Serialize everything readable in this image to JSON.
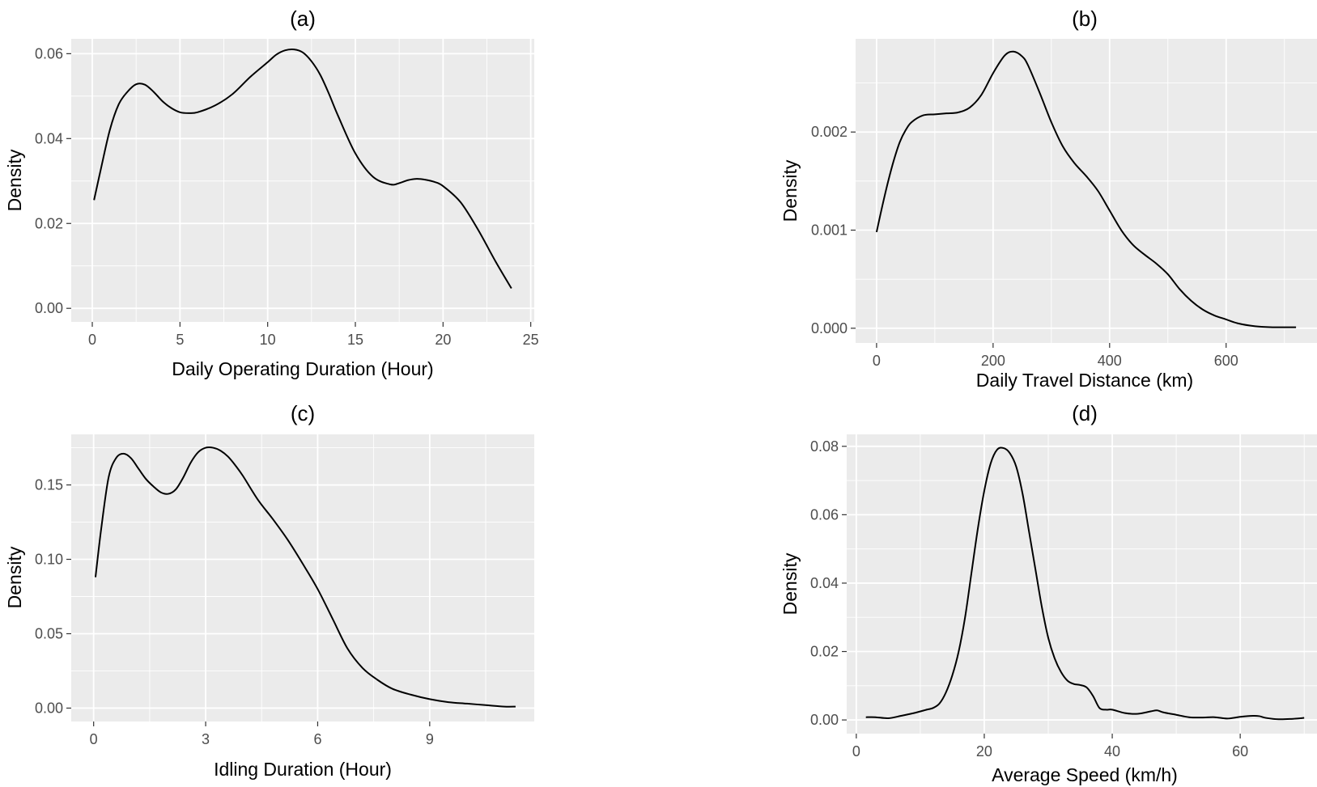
{
  "chart_data": [
    {
      "type": "line",
      "title": "(a)",
      "xlabel": "Daily Operating Duration (Hour)",
      "ylabel": "Density",
      "xlim": [
        -1.2,
        25.2
      ],
      "ylim": [
        -0.0032,
        0.0635
      ],
      "xticks": [
        0,
        5,
        10,
        15,
        20,
        25
      ],
      "xtick_labels": [
        "0",
        "5",
        "10",
        "15",
        "20",
        "25"
      ],
      "yticks": [
        0.0,
        0.02,
        0.04,
        0.06
      ],
      "ytick_labels": [
        "0.00",
        "0.02",
        "0.04",
        "0.06"
      ],
      "grid": true,
      "series": [
        {
          "x": [
            0.1,
            0.5,
            1,
            1.5,
            2,
            2.5,
            3,
            3.5,
            4,
            4.5,
            5,
            5.5,
            6,
            7,
            8,
            9,
            10,
            10.5,
            11,
            11.5,
            12,
            12.5,
            13,
            13.5,
            14,
            15,
            16,
            17,
            17.5,
            18,
            18.5,
            19,
            19.5,
            20,
            21,
            22,
            23,
            23.9
          ],
          "y": [
            0.0255,
            0.033,
            0.042,
            0.048,
            0.051,
            0.0528,
            0.0527,
            0.051,
            0.0488,
            0.0472,
            0.0462,
            0.046,
            0.0462,
            0.0478,
            0.0505,
            0.0545,
            0.058,
            0.0598,
            0.0608,
            0.061,
            0.0603,
            0.0582,
            0.055,
            0.0505,
            0.0455,
            0.0365,
            0.031,
            0.0292,
            0.0295,
            0.0302,
            0.0305,
            0.0303,
            0.0298,
            0.0288,
            0.025,
            0.0185,
            0.011,
            0.0047
          ]
        }
      ]
    },
    {
      "type": "line",
      "title": "(b)",
      "xlabel": "Daily Travel Distance (km)",
      "ylabel": "Density",
      "xlim": [
        -36,
        756
      ],
      "ylim": [
        -0.00015,
        0.00295
      ],
      "xticks": [
        0,
        200,
        400,
        600
      ],
      "xtick_labels": [
        "0",
        "200",
        "400",
        "600"
      ],
      "yticks": [
        0.0,
        0.001,
        0.002
      ],
      "ytick_labels": [
        "0.000",
        "0.001",
        "0.002"
      ],
      "grid": true,
      "series": [
        {
          "x": [
            0,
            10,
            20,
            30,
            40,
            50,
            60,
            80,
            100,
            120,
            140,
            160,
            180,
            200,
            220,
            235,
            250,
            260,
            280,
            300,
            320,
            340,
            360,
            380,
            400,
            420,
            440,
            460,
            480,
            500,
            520,
            540,
            560,
            580,
            600,
            620,
            650,
            680,
            720
          ],
          "y": [
            0.00098,
            0.00125,
            0.0015,
            0.00172,
            0.0019,
            0.00202,
            0.0021,
            0.00217,
            0.00218,
            0.00219,
            0.0022,
            0.00225,
            0.00238,
            0.0026,
            0.00278,
            0.00282,
            0.00277,
            0.00268,
            0.0024,
            0.0021,
            0.00185,
            0.00168,
            0.00155,
            0.0014,
            0.0012,
            0.001,
            0.00085,
            0.00075,
            0.00066,
            0.00055,
            0.0004,
            0.00028,
            0.00019,
            0.00013,
            9e-05,
            5e-05,
            2e-05,
            1e-05,
            1e-05
          ]
        }
      ]
    },
    {
      "type": "line",
      "title": "(c)",
      "xlabel": "Idling Duration (Hour)",
      "ylabel": "Density",
      "xlim": [
        -0.6,
        11.8
      ],
      "ylim": [
        -0.009,
        0.184
      ],
      "xticks": [
        0,
        3,
        6,
        9
      ],
      "xtick_labels": [
        "0",
        "3",
        "6",
        "9"
      ],
      "yticks": [
        0.0,
        0.05,
        0.1,
        0.15
      ],
      "ytick_labels": [
        "0.00",
        "0.05",
        "0.10",
        "0.15"
      ],
      "grid": true,
      "series": [
        {
          "x": [
            0.05,
            0.2,
            0.4,
            0.6,
            0.8,
            1.0,
            1.2,
            1.4,
            1.6,
            1.8,
            2.0,
            2.2,
            2.4,
            2.6,
            2.8,
            3.0,
            3.2,
            3.4,
            3.6,
            3.8,
            4.0,
            4.4,
            4.8,
            5.2,
            5.6,
            6.0,
            6.4,
            6.8,
            7.2,
            7.6,
            8.0,
            8.5,
            9.0,
            9.5,
            10.0,
            10.5,
            11.0,
            11.3
          ],
          "y": [
            0.088,
            0.12,
            0.155,
            0.168,
            0.171,
            0.168,
            0.161,
            0.154,
            0.149,
            0.145,
            0.144,
            0.147,
            0.155,
            0.165,
            0.172,
            0.175,
            0.175,
            0.173,
            0.169,
            0.163,
            0.156,
            0.14,
            0.127,
            0.113,
            0.097,
            0.08,
            0.06,
            0.04,
            0.027,
            0.019,
            0.013,
            0.009,
            0.006,
            0.004,
            0.003,
            0.002,
            0.001,
            0.001
          ]
        }
      ]
    },
    {
      "type": "line",
      "title": "(d)",
      "xlabel": "Average Speed (km/h)",
      "ylabel": "Density",
      "xlim": [
        -1.5,
        72
      ],
      "ylim": [
        -0.004,
        0.0835
      ],
      "xticks": [
        0,
        20,
        40,
        60
      ],
      "xtick_labels": [
        "0",
        "20",
        "40",
        "60"
      ],
      "yticks": [
        0.0,
        0.02,
        0.04,
        0.06,
        0.08
      ],
      "ytick_labels": [
        "0.00",
        "0.02",
        "0.04",
        "0.06",
        "0.08"
      ],
      "grid": true,
      "series": [
        {
          "x": [
            1.5,
            3,
            5,
            7,
            9,
            11,
            12,
            13,
            14,
            15,
            16,
            17,
            18,
            19,
            20,
            21,
            22,
            23,
            24,
            25,
            26,
            27,
            28,
            29,
            30,
            31,
            32,
            33,
            34,
            35,
            36,
            37,
            38,
            39,
            40,
            42,
            44,
            46,
            47,
            48,
            50,
            52,
            54,
            56,
            58,
            60,
            62,
            63,
            64,
            66,
            68,
            70
          ],
          "y": [
            0.0008,
            0.0008,
            0.0005,
            0.0012,
            0.002,
            0.003,
            0.0035,
            0.0048,
            0.008,
            0.013,
            0.02,
            0.03,
            0.043,
            0.056,
            0.067,
            0.075,
            0.079,
            0.0795,
            0.078,
            0.074,
            0.066,
            0.055,
            0.044,
            0.033,
            0.024,
            0.018,
            0.014,
            0.0115,
            0.0105,
            0.0102,
            0.0095,
            0.007,
            0.0035,
            0.003,
            0.003,
            0.002,
            0.0018,
            0.0025,
            0.0028,
            0.0022,
            0.0015,
            0.0008,
            0.0007,
            0.0008,
            0.0004,
            0.0009,
            0.0012,
            0.0011,
            0.0006,
            0.0002,
            0.0003,
            0.0006
          ]
        }
      ]
    }
  ]
}
